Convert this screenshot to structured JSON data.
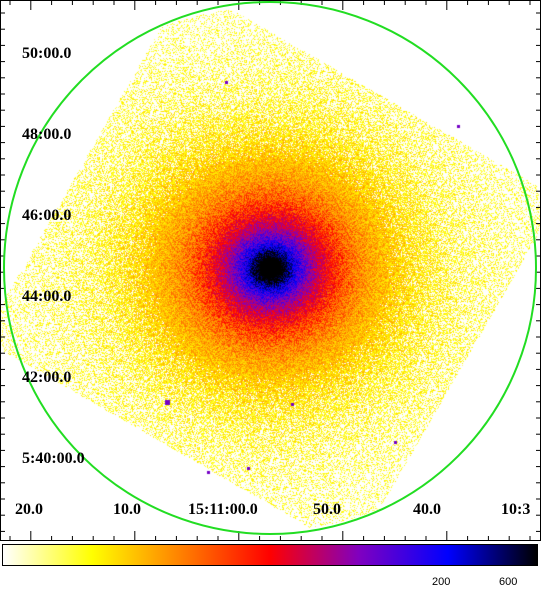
{
  "image": {
    "ra_labels": [
      "20.0",
      "10.0",
      "15:11:00.0",
      "50.0",
      "40.0",
      "10:3"
    ],
    "dec_labels": [
      "50:00.0",
      "48:00.0",
      "46:00.0",
      "44:00.0",
      "42:00.0",
      "5:40:00.0"
    ],
    "region_color": "#22dd22",
    "cmap": [
      "#ffffff",
      "#ffff00",
      "#ff8000",
      "#ff0000",
      "#8000c0",
      "#0000ff",
      "#000000"
    ]
  },
  "colorbar": {
    "ticks": [
      "200",
      "600"
    ]
  }
}
